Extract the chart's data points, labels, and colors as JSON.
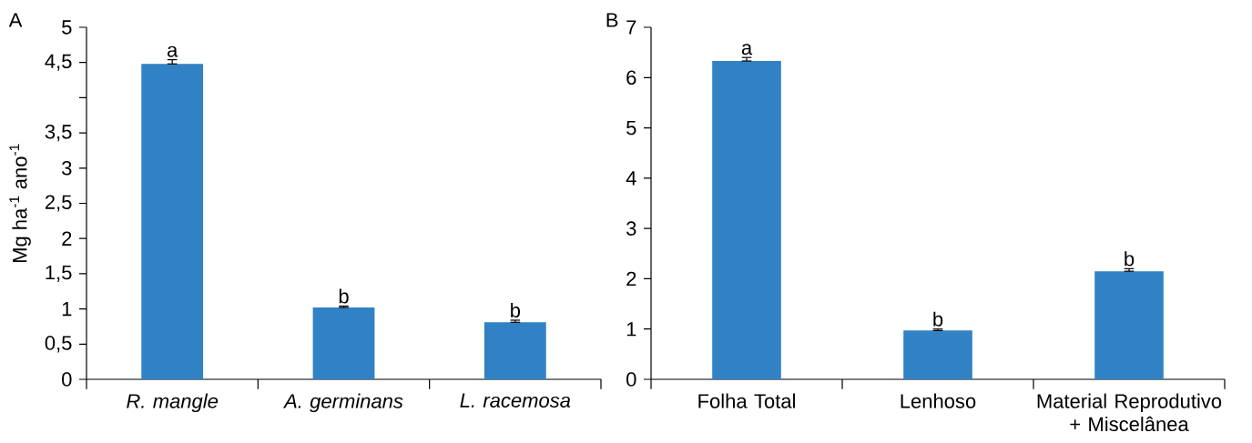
{
  "chart_data": [
    {
      "type": "bar",
      "title": "A",
      "ylabel": "Mg ha$^{-1}$ ano$^{-1}$",
      "categories": [
        "*R. mangle*",
        "*A. germinans*",
        "*L. racemosa*"
      ],
      "values": [
        4.48,
        1.02,
        0.81
      ],
      "errors": [
        [
          4.48,
          4.54
        ],
        [
          1.02,
          1.04
        ],
        [
          0.81,
          0.84
        ]
      ],
      "color": "#3182c4",
      "ylim": [
        0,
        5
      ],
      "yticks": [
        0,
        {
          "value": 0.5,
          "label": "0,5"
        },
        1,
        {
          "value": 1.5,
          "label": "1,5"
        },
        2,
        {
          "value": 2.5,
          "label": "2,5"
        },
        3,
        {
          "value": 3.5,
          "label": "3,5"
        },
        {
          "value": 4,
          "label": null
        },
        {
          "value": 4.5,
          "label": "4,5"
        },
        5
      ],
      "annotations": [
        {
          "text": "a",
          "x": "*R. mangle*",
          "y": 4.54
        },
        {
          "text": "b",
          "x": "*A. germinans*",
          "y": 1.04
        },
        {
          "text": "b",
          "x": "*L. racemosa*",
          "y": 0.84
        }
      ]
    },
    {
      "type": "bar",
      "title": "B",
      "categories": [
        "Folha Total",
        "Lenhoso",
        "Material Reprodutivo + Miscelânea"
      ],
      "values": [
        6.33,
        0.97,
        2.15
      ],
      "errors": [
        [
          6.33,
          6.4
        ],
        [
          0.97,
          1.0
        ],
        [
          2.15,
          2.2
        ]
      ],
      "color": "#3182c4",
      "ylim": [
        0,
        7
      ],
      "yticks": [
        0,
        1,
        2,
        3,
        4,
        5,
        6,
        7
      ],
      "annotations": [
        {
          "text": "a",
          "x": "Folha Total",
          "y": 6.4
        },
        {
          "text": "b",
          "x": "Lenhoso",
          "y": 1.0
        },
        {
          "text": "b",
          "x": "Material Reprodutivo + Miscelânea",
          "y": 2.2
        }
      ]
    }
  ]
}
